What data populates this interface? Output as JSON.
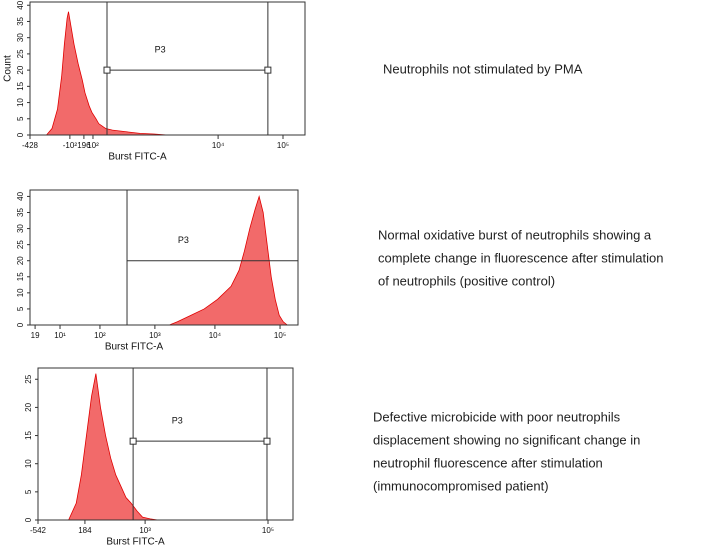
{
  "chart_data": [
    {
      "type": "area",
      "color": "#f26a6a",
      "line_color": "#e00000",
      "xlabel": "Burst FITC-A",
      "ylabel": "Count",
      "x": [
        0,
        60,
        80,
        100,
        115,
        125,
        135,
        140,
        150,
        160,
        175,
        190,
        200,
        215,
        225,
        240,
        250,
        275,
        300,
        350,
        400,
        450,
        500
      ],
      "values": [
        0,
        0,
        2,
        8,
        18,
        28,
        36,
        38,
        33,
        28,
        22,
        17,
        13,
        9,
        7,
        5,
        3.5,
        2,
        1.5,
        1,
        0.5,
        0.3,
        0
      ],
      "xlim": [
        0,
        1000
      ],
      "ylim": [
        0,
        41
      ],
      "xticks": [
        {
          "value": 0,
          "label": "-428"
        },
        {
          "value": 145,
          "label": "-10²"
        },
        196,
        {
          "value": 229,
          "label": "10²"
        },
        {
          "value": 684,
          "label": "10⁴"
        },
        {
          "value": 920,
          "label": "10⁵"
        }
      ],
      "yticks": [
        0,
        5,
        10,
        15,
        20,
        25,
        30,
        35,
        40
      ],
      "gate": {
        "label": "P3",
        "x": [
          280,
          865
        ],
        "y": 20,
        "handles": true
      },
      "caption": [
        "Neutrophils not stimulated by PMA"
      ]
    },
    {
      "type": "area",
      "color": "#f26a6a",
      "line_color": "#e00000",
      "xlabel": "Burst FITC-A",
      "x": [
        0,
        520,
        550,
        600,
        650,
        700,
        750,
        780,
        800,
        820,
        840,
        855,
        870,
        885,
        900,
        915,
        930,
        945,
        960,
        1000
      ],
      "values": [
        0,
        0,
        1,
        3,
        5,
        8,
        12,
        17,
        23,
        30,
        36,
        40,
        35,
        25,
        15,
        8,
        3,
        1,
        0,
        0
      ],
      "xlim": [
        0,
        1000
      ],
      "ylim": [
        0,
        42
      ],
      "xticks": [
        19,
        {
          "value": 112,
          "label": "10¹"
        },
        {
          "value": 261,
          "label": "10²"
        },
        {
          "value": 466,
          "label": "10³"
        },
        {
          "value": 690,
          "label": "10⁴"
        },
        {
          "value": 933,
          "label": "10⁵"
        }
      ],
      "yticks": [
        0,
        5,
        10,
        15,
        20,
        25,
        30,
        35,
        40
      ],
      "gate": {
        "label": "P3",
        "x": [
          362,
          1000
        ],
        "y": 20,
        "handles": false
      },
      "caption": [
        "Normal oxidative burst of neutrophils showing a",
        "complete change in fluorescence after stimulation",
        "of neutrophils (positive control)"
      ]
    },
    {
      "type": "area",
      "color": "#f26a6a",
      "line_color": "#e00000",
      "xlabel": "Burst FITC-A",
      "x": [
        0,
        120,
        150,
        170,
        190,
        210,
        227,
        245,
        265,
        285,
        305,
        325,
        345,
        365,
        390,
        410,
        440,
        470,
        1000
      ],
      "values": [
        0,
        0,
        3,
        8,
        15,
        22,
        26,
        20,
        15,
        11,
        8,
        6,
        4,
        3,
        1.5,
        0.5,
        0.2,
        0,
        0
      ],
      "xlim": [
        0,
        1000
      ],
      "ylim": [
        0,
        27
      ],
      "xticks": [
        {
          "value": 0,
          "label": "-542"
        },
        184,
        {
          "value": 420,
          "label": "10³"
        },
        {
          "value": 902,
          "label": "10⁵"
        }
      ],
      "yticks": [
        0,
        5,
        10,
        15,
        20,
        25
      ],
      "gate": {
        "label": "P3",
        "x": [
          373,
          898
        ],
        "y": 14,
        "handles": true
      },
      "caption": [
        "Defective microbicide with poor neutrophils",
        "displacement showing no significant change in",
        "neutrophil fluorescence after stimulation",
        "(immunocompromised patient)"
      ]
    }
  ]
}
